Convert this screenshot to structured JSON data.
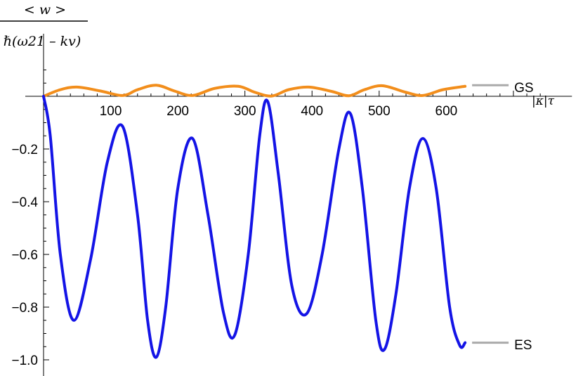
{
  "chart_data": {
    "type": "line",
    "ylabel": {
      "numerator": "< w >",
      "denominator": "ℏ(ω21 – kv)"
    },
    "xlabel": {
      "text": "|κ|τ"
    },
    "xlim": [
      0,
      760
    ],
    "ylim": [
      -1.04,
      0.12
    ],
    "x_ticks": [
      100,
      200,
      300,
      400,
      500,
      600
    ],
    "y_ticks": [
      -0.2,
      -0.4,
      -0.6,
      -0.8,
      -1.0
    ],
    "y_tick_labels": [
      "−0.2",
      "−0.4",
      "−0.6",
      "−0.8",
      "−1.0"
    ],
    "grid": false,
    "series": [
      {
        "name": "GS",
        "color": "#f28e1c",
        "points": [
          [
            0,
            0
          ],
          [
            25,
            0.025
          ],
          [
            50,
            0.035
          ],
          [
            85,
            0.02
          ],
          [
            118,
            0.003
          ],
          [
            140,
            0.025
          ],
          [
            168,
            0.042
          ],
          [
            195,
            0.02
          ],
          [
            222,
            0.003
          ],
          [
            255,
            0.03
          ],
          [
            290,
            0.038
          ],
          [
            315,
            0.015
          ],
          [
            340,
            0.001
          ],
          [
            365,
            0.025
          ],
          [
            395,
            0.035
          ],
          [
            430,
            0.018
          ],
          [
            455,
            0.002
          ],
          [
            478,
            0.025
          ],
          [
            505,
            0.04
          ],
          [
            540,
            0.015
          ],
          [
            565,
            0.003
          ],
          [
            595,
            0.025
          ],
          [
            628,
            0.038
          ]
        ]
      },
      {
        "name": "ES",
        "color": "#1414e6",
        "points": [
          [
            0,
            0
          ],
          [
            10,
            -0.15
          ],
          [
            25,
            -0.6
          ],
          [
            45,
            -0.85
          ],
          [
            70,
            -0.62
          ],
          [
            95,
            -0.25
          ],
          [
            118,
            -0.115
          ],
          [
            140,
            -0.45
          ],
          [
            155,
            -0.85
          ],
          [
            168,
            -0.99
          ],
          [
            182,
            -0.8
          ],
          [
            200,
            -0.35
          ],
          [
            222,
            -0.16
          ],
          [
            245,
            -0.45
          ],
          [
            268,
            -0.82
          ],
          [
            285,
            -0.905
          ],
          [
            305,
            -0.6
          ],
          [
            322,
            -0.15
          ],
          [
            334,
            -0.02
          ],
          [
            350,
            -0.3
          ],
          [
            370,
            -0.72
          ],
          [
            392,
            -0.825
          ],
          [
            415,
            -0.6
          ],
          [
            440,
            -0.2
          ],
          [
            457,
            -0.065
          ],
          [
            475,
            -0.35
          ],
          [
            495,
            -0.85
          ],
          [
            508,
            -0.96
          ],
          [
            525,
            -0.75
          ],
          [
            545,
            -0.35
          ],
          [
            565,
            -0.16
          ],
          [
            585,
            -0.35
          ],
          [
            605,
            -0.8
          ],
          [
            620,
            -0.945
          ],
          [
            628,
            -0.935
          ]
        ]
      }
    ],
    "end_labels": [
      "GS",
      "ES"
    ]
  }
}
